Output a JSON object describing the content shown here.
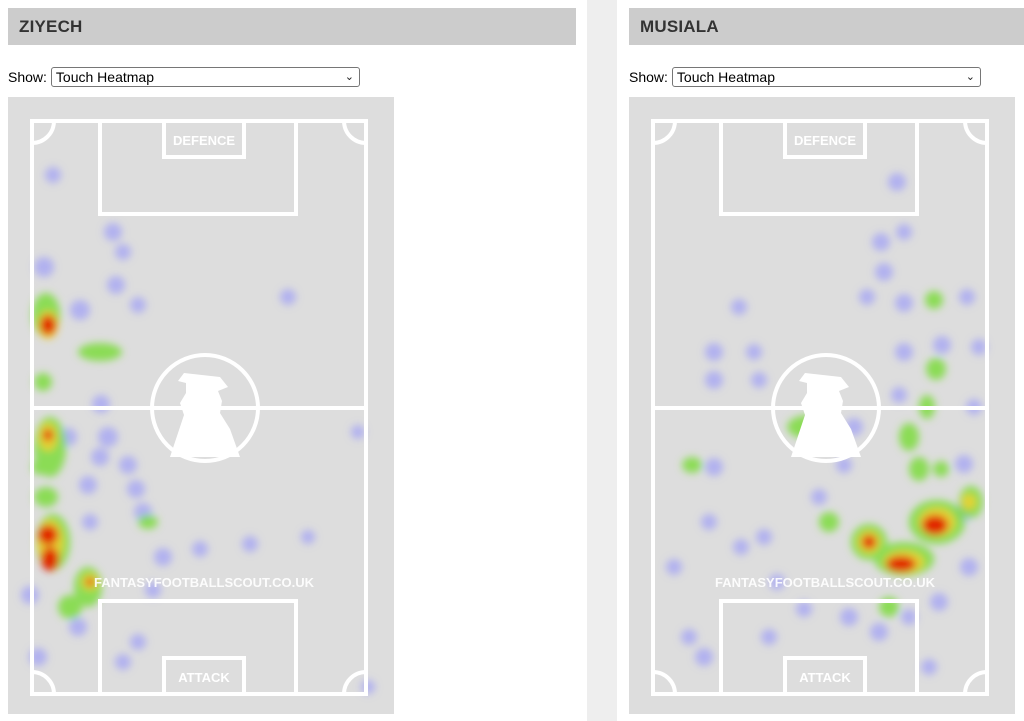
{
  "players": [
    {
      "name": "ZIYECH",
      "show_label": "Show:",
      "select_value": "Touch Heatmap",
      "pitch": {
        "top_label": "DEFENCE",
        "bottom_label": "ATTACK",
        "watermark": "FANTASYFOOTBALLSCOUT.CO.UK"
      }
    },
    {
      "name": "MUSIALA",
      "show_label": "Show:",
      "select_value": "Touch Heatmap",
      "pitch": {
        "top_label": "DEFENCE",
        "bottom_label": "ATTACK",
        "watermark": "FANTASYFOOTBALLSCOUT.CO.UK"
      }
    }
  ],
  "colors": {
    "pitch_bg": "#dddddd",
    "pitch_lines": "#ffffff",
    "header_bg": "#cccccc",
    "heat_low": "#8c8cff",
    "heat_mid": "#7ddc3c",
    "heat_high": "#e01e00"
  }
}
